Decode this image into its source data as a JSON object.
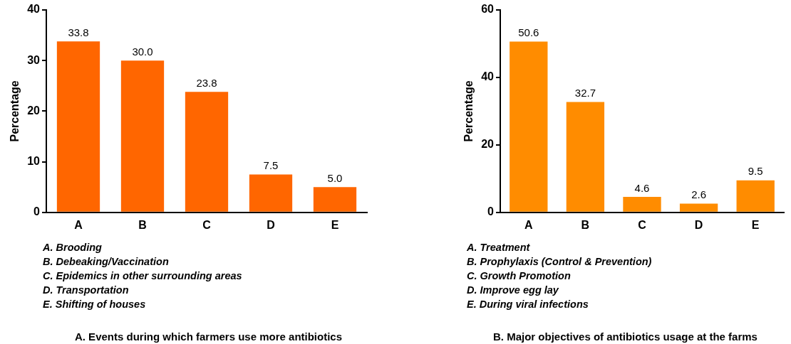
{
  "chart_data": [
    {
      "type": "bar",
      "title": "A. Events during which farmers use more antibiotics",
      "ylabel": "Percentage",
      "categories": [
        "A",
        "B",
        "C",
        "D",
        "E"
      ],
      "values": [
        33.8,
        30.0,
        23.8,
        7.5,
        5.0
      ],
      "color": "#ff6600",
      "value_labels": [
        "33.8",
        "30.0",
        "23.8",
        "7.5",
        "5.0"
      ],
      "ylim": [
        0,
        40
      ],
      "yticks": [
        0,
        10,
        20,
        30,
        40
      ],
      "grid": false,
      "annotations": [
        "A.  Brooding",
        "B.  Debeaking/Vaccination",
        "C.  Epidemics in other surrounding areas",
        "D.  Transportation",
        "E.  Shifting of houses"
      ]
    },
    {
      "type": "bar",
      "title": "B. Major objectives of antibiotics usage at the farms",
      "ylabel": "Percentage",
      "categories": [
        "A",
        "B",
        "C",
        "D",
        "E"
      ],
      "values": [
        50.6,
        32.7,
        4.6,
        2.6,
        9.5
      ],
      "color": "#ff8c00",
      "value_labels": [
        "50.6",
        "32.7",
        "4.6",
        "2.6",
        "9.5"
      ],
      "ylim": [
        0,
        60
      ],
      "yticks": [
        0,
        20,
        40,
        60
      ],
      "grid": false,
      "annotations": [
        "A.  Treatment",
        "B.  Prophylaxis (Control & Prevention)",
        "C.  Growth Promotion",
        "D.  Improve egg lay",
        "E.  During viral infections"
      ]
    }
  ]
}
